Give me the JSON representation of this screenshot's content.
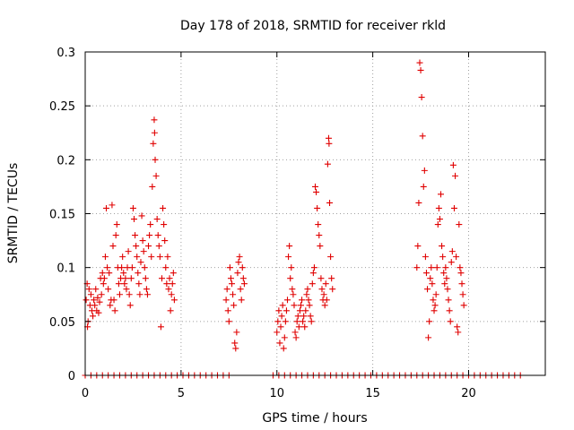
{
  "chart_data": {
    "type": "scatter",
    "title": "Day 178 of 2018, SRMTID for receiver rkld",
    "xlabel": "GPS time / hours",
    "ylabel": "SRMTID / TECUs",
    "xlim": [
      0,
      24
    ],
    "ylim": [
      0,
      0.3
    ],
    "x_ticks": [
      0,
      5,
      10,
      15,
      20
    ],
    "x_tick_labels": [
      "0",
      "5",
      "10",
      "15",
      "20"
    ],
    "y_ticks": [
      0,
      0.05,
      0.1,
      0.15,
      0.2,
      0.25,
      0.3
    ],
    "y_tick_labels": [
      "0",
      "0.05",
      "0.1",
      "0.15",
      "0.2",
      "0.25",
      "0.3"
    ],
    "grid": true,
    "marker": "+",
    "color": "#e00000",
    "series": [
      {
        "name": "SRMTID",
        "points": [
          [
            0.05,
            0.07
          ],
          [
            0.1,
            0.085
          ],
          [
            0.12,
            0.045
          ],
          [
            0.15,
            0.05
          ],
          [
            0.2,
            0.08
          ],
          [
            0.25,
            0.065
          ],
          [
            0.3,
            0.075
          ],
          [
            0.35,
            0.06
          ],
          [
            0.4,
            0.055
          ],
          [
            0.45,
            0.07
          ],
          [
            0.5,
            0.065
          ],
          [
            0.55,
            0.08
          ],
          [
            0.6,
            0.06
          ],
          [
            0.65,
            0.072
          ],
          [
            0.7,
            0.058
          ],
          [
            0.75,
            0.068
          ],
          [
            0.8,
            0.09
          ],
          [
            0.85,
            0.075
          ],
          [
            0.9,
            0.095
          ],
          [
            0.95,
            0.085
          ],
          [
            1.0,
            0.09
          ],
          [
            1.05,
            0.11
          ],
          [
            1.1,
            0.155
          ],
          [
            1.15,
            0.1
          ],
          [
            1.2,
            0.08
          ],
          [
            1.25,
            0.095
          ],
          [
            1.3,
            0.065
          ],
          [
            1.35,
            0.07
          ],
          [
            1.4,
            0.158
          ],
          [
            1.45,
            0.12
          ],
          [
            1.5,
            0.07
          ],
          [
            1.55,
            0.06
          ],
          [
            1.6,
            0.13
          ],
          [
            1.65,
            0.14
          ],
          [
            1.7,
            0.1
          ],
          [
            1.75,
            0.085
          ],
          [
            1.8,
            0.075
          ],
          [
            1.85,
            0.09
          ],
          [
            1.9,
            0.1
          ],
          [
            1.95,
            0.11
          ],
          [
            2.0,
            0.095
          ],
          [
            2.05,
            0.085
          ],
          [
            2.1,
            0.09
          ],
          [
            2.15,
            0.08
          ],
          [
            2.2,
            0.1
          ],
          [
            2.25,
            0.115
          ],
          [
            2.3,
            0.075
          ],
          [
            2.35,
            0.065
          ],
          [
            2.4,
            0.09
          ],
          [
            2.45,
            0.1
          ],
          [
            2.5,
            0.155
          ],
          [
            2.55,
            0.145
          ],
          [
            2.6,
            0.13
          ],
          [
            2.65,
            0.12
          ],
          [
            2.7,
            0.11
          ],
          [
            2.75,
            0.095
          ],
          [
            2.8,
            0.085
          ],
          [
            2.85,
            0.075
          ],
          [
            2.9,
            0.105
          ],
          [
            2.95,
            0.148
          ],
          [
            3.0,
            0.125
          ],
          [
            3.05,
            0.115
          ],
          [
            3.1,
            0.1
          ],
          [
            3.15,
            0.09
          ],
          [
            3.2,
            0.08
          ],
          [
            3.25,
            0.075
          ],
          [
            3.3,
            0.12
          ],
          [
            3.35,
            0.13
          ],
          [
            3.4,
            0.14
          ],
          [
            3.45,
            0.11
          ],
          [
            3.5,
            0.175
          ],
          [
            3.55,
            0.215
          ],
          [
            3.6,
            0.237
          ],
          [
            3.62,
            0.225
          ],
          [
            3.65,
            0.2
          ],
          [
            3.7,
            0.185
          ],
          [
            3.75,
            0.145
          ],
          [
            3.8,
            0.13
          ],
          [
            3.85,
            0.12
          ],
          [
            3.9,
            0.11
          ],
          [
            3.95,
            0.045
          ],
          [
            4.0,
            0.09
          ],
          [
            4.05,
            0.155
          ],
          [
            4.1,
            0.14
          ],
          [
            4.15,
            0.125
          ],
          [
            4.2,
            0.1
          ],
          [
            4.25,
            0.085
          ],
          [
            4.3,
            0.11
          ],
          [
            4.35,
            0.08
          ],
          [
            4.4,
            0.09
          ],
          [
            4.45,
            0.06
          ],
          [
            4.5,
            0.075
          ],
          [
            4.55,
            0.085
          ],
          [
            4.6,
            0.095
          ],
          [
            4.65,
            0.07
          ],
          [
            7.35,
            0.07
          ],
          [
            7.4,
            0.08
          ],
          [
            7.45,
            0.06
          ],
          [
            7.5,
            0.05
          ],
          [
            7.55,
            0.1
          ],
          [
            7.6,
            0.09
          ],
          [
            7.65,
            0.085
          ],
          [
            7.7,
            0.075
          ],
          [
            7.75,
            0.065
          ],
          [
            7.8,
            0.03
          ],
          [
            7.85,
            0.025
          ],
          [
            7.9,
            0.04
          ],
          [
            7.95,
            0.095
          ],
          [
            8.0,
            0.105
          ],
          [
            8.05,
            0.11
          ],
          [
            8.1,
            0.08
          ],
          [
            8.15,
            0.07
          ],
          [
            8.2,
            0.1
          ],
          [
            8.25,
            0.09
          ],
          [
            8.3,
            0.085
          ],
          [
            10.0,
            0.04
          ],
          [
            10.05,
            0.05
          ],
          [
            10.1,
            0.06
          ],
          [
            10.15,
            0.03
          ],
          [
            10.2,
            0.045
          ],
          [
            10.25,
            0.055
          ],
          [
            10.3,
            0.065
          ],
          [
            10.35,
            0.025
          ],
          [
            10.4,
            0.035
          ],
          [
            10.45,
            0.05
          ],
          [
            10.5,
            0.06
          ],
          [
            10.55,
            0.07
          ],
          [
            10.6,
            0.11
          ],
          [
            10.65,
            0.12
          ],
          [
            10.7,
            0.09
          ],
          [
            10.75,
            0.1
          ],
          [
            10.8,
            0.08
          ],
          [
            10.85,
            0.075
          ],
          [
            10.9,
            0.065
          ],
          [
            10.95,
            0.04
          ],
          [
            11.0,
            0.035
          ],
          [
            11.05,
            0.05
          ],
          [
            11.1,
            0.055
          ],
          [
            11.15,
            0.045
          ],
          [
            11.2,
            0.06
          ],
          [
            11.25,
            0.065
          ],
          [
            11.3,
            0.07
          ],
          [
            11.35,
            0.05
          ],
          [
            11.4,
            0.055
          ],
          [
            11.45,
            0.045
          ],
          [
            11.5,
            0.06
          ],
          [
            11.55,
            0.075
          ],
          [
            11.6,
            0.08
          ],
          [
            11.65,
            0.07
          ],
          [
            11.7,
            0.065
          ],
          [
            11.75,
            0.055
          ],
          [
            11.8,
            0.05
          ],
          [
            11.85,
            0.085
          ],
          [
            11.9,
            0.095
          ],
          [
            11.95,
            0.1
          ],
          [
            12.0,
            0.175
          ],
          [
            12.05,
            0.17
          ],
          [
            12.1,
            0.155
          ],
          [
            12.15,
            0.14
          ],
          [
            12.2,
            0.13
          ],
          [
            12.25,
            0.12
          ],
          [
            12.3,
            0.09
          ],
          [
            12.35,
            0.08
          ],
          [
            12.4,
            0.07
          ],
          [
            12.45,
            0.075
          ],
          [
            12.5,
            0.065
          ],
          [
            12.55,
            0.085
          ],
          [
            12.6,
            0.07
          ],
          [
            12.65,
            0.196
          ],
          [
            12.7,
            0.22
          ],
          [
            12.72,
            0.215
          ],
          [
            12.75,
            0.16
          ],
          [
            12.8,
            0.11
          ],
          [
            12.85,
            0.09
          ],
          [
            12.9,
            0.08
          ],
          [
            17.3,
            0.1
          ],
          [
            17.35,
            0.12
          ],
          [
            17.4,
            0.16
          ],
          [
            17.45,
            0.29
          ],
          [
            17.5,
            0.283
          ],
          [
            17.55,
            0.258
          ],
          [
            17.6,
            0.222
          ],
          [
            17.65,
            0.175
          ],
          [
            17.7,
            0.19
          ],
          [
            17.75,
            0.11
          ],
          [
            17.8,
            0.095
          ],
          [
            17.85,
            0.08
          ],
          [
            17.9,
            0.035
          ],
          [
            17.95,
            0.05
          ],
          [
            18.0,
            0.09
          ],
          [
            18.05,
            0.1
          ],
          [
            18.1,
            0.085
          ],
          [
            18.15,
            0.07
          ],
          [
            18.2,
            0.06
          ],
          [
            18.25,
            0.065
          ],
          [
            18.3,
            0.075
          ],
          [
            18.35,
            0.1
          ],
          [
            18.4,
            0.14
          ],
          [
            18.45,
            0.155
          ],
          [
            18.5,
            0.145
          ],
          [
            18.55,
            0.168
          ],
          [
            18.6,
            0.12
          ],
          [
            18.65,
            0.11
          ],
          [
            18.7,
            0.095
          ],
          [
            18.75,
            0.085
          ],
          [
            18.8,
            0.1
          ],
          [
            18.85,
            0.09
          ],
          [
            18.9,
            0.08
          ],
          [
            18.95,
            0.07
          ],
          [
            19.0,
            0.06
          ],
          [
            19.05,
            0.05
          ],
          [
            19.1,
            0.105
          ],
          [
            19.15,
            0.115
          ],
          [
            19.2,
            0.195
          ],
          [
            19.25,
            0.155
          ],
          [
            19.3,
            0.185
          ],
          [
            19.35,
            0.11
          ],
          [
            19.4,
            0.045
          ],
          [
            19.45,
            0.04
          ],
          [
            19.5,
            0.14
          ],
          [
            19.55,
            0.1
          ],
          [
            19.6,
            0.095
          ],
          [
            19.65,
            0.085
          ],
          [
            19.7,
            0.075
          ],
          [
            19.75,
            0.065
          ],
          [
            0.0,
            0
          ],
          [
            0.3,
            0
          ],
          [
            0.6,
            0
          ],
          [
            0.9,
            0
          ],
          [
            1.2,
            0
          ],
          [
            1.5,
            0
          ],
          [
            1.8,
            0
          ],
          [
            2.1,
            0
          ],
          [
            2.4,
            0
          ],
          [
            2.7,
            0
          ],
          [
            3.0,
            0
          ],
          [
            3.3,
            0
          ],
          [
            3.6,
            0
          ],
          [
            3.9,
            0
          ],
          [
            4.2,
            0
          ],
          [
            4.5,
            0
          ],
          [
            4.8,
            0
          ],
          [
            5.1,
            0
          ],
          [
            5.4,
            0
          ],
          [
            5.7,
            0
          ],
          [
            6.0,
            0
          ],
          [
            6.3,
            0
          ],
          [
            6.6,
            0
          ],
          [
            6.9,
            0
          ],
          [
            7.2,
            0
          ],
          [
            7.5,
            0
          ],
          [
            9.8,
            0
          ],
          [
            10.1,
            0
          ],
          [
            10.4,
            0
          ],
          [
            10.7,
            0
          ],
          [
            11.0,
            0
          ],
          [
            11.3,
            0
          ],
          [
            11.6,
            0
          ],
          [
            11.9,
            0
          ],
          [
            12.2,
            0
          ],
          [
            12.5,
            0
          ],
          [
            12.8,
            0
          ],
          [
            13.1,
            0
          ],
          [
            13.4,
            0
          ],
          [
            13.7,
            0
          ],
          [
            14.0,
            0
          ],
          [
            14.3,
            0
          ],
          [
            14.6,
            0
          ],
          [
            14.9,
            0
          ],
          [
            15.2,
            0
          ],
          [
            15.5,
            0
          ],
          [
            15.8,
            0
          ],
          [
            16.1,
            0
          ],
          [
            16.4,
            0
          ],
          [
            16.7,
            0
          ],
          [
            17.0,
            0
          ],
          [
            17.3,
            0
          ],
          [
            17.6,
            0
          ],
          [
            17.9,
            0
          ],
          [
            18.2,
            0
          ],
          [
            18.5,
            0
          ],
          [
            18.8,
            0
          ],
          [
            19.1,
            0
          ],
          [
            19.4,
            0
          ],
          [
            19.7,
            0
          ],
          [
            20.0,
            0
          ],
          [
            20.3,
            0
          ],
          [
            20.6,
            0
          ],
          [
            20.9,
            0
          ],
          [
            21.2,
            0
          ],
          [
            21.5,
            0
          ],
          [
            21.8,
            0
          ],
          [
            22.1,
            0
          ],
          [
            22.4,
            0
          ],
          [
            22.7,
            0
          ]
        ]
      }
    ]
  }
}
